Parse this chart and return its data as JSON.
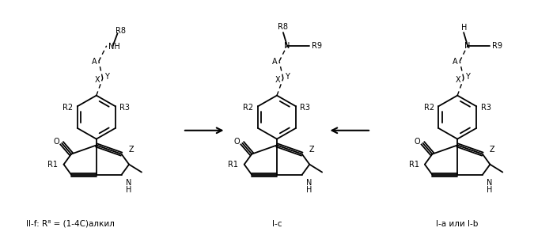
{
  "bg_color": "#ffffff",
  "fig_width": 6.99,
  "fig_height": 3.07,
  "dpi": 100,
  "label_left": "II-f: R⁸ = (1-4C)алкил",
  "label_center": "I-c",
  "label_right": "I-a или I-b"
}
